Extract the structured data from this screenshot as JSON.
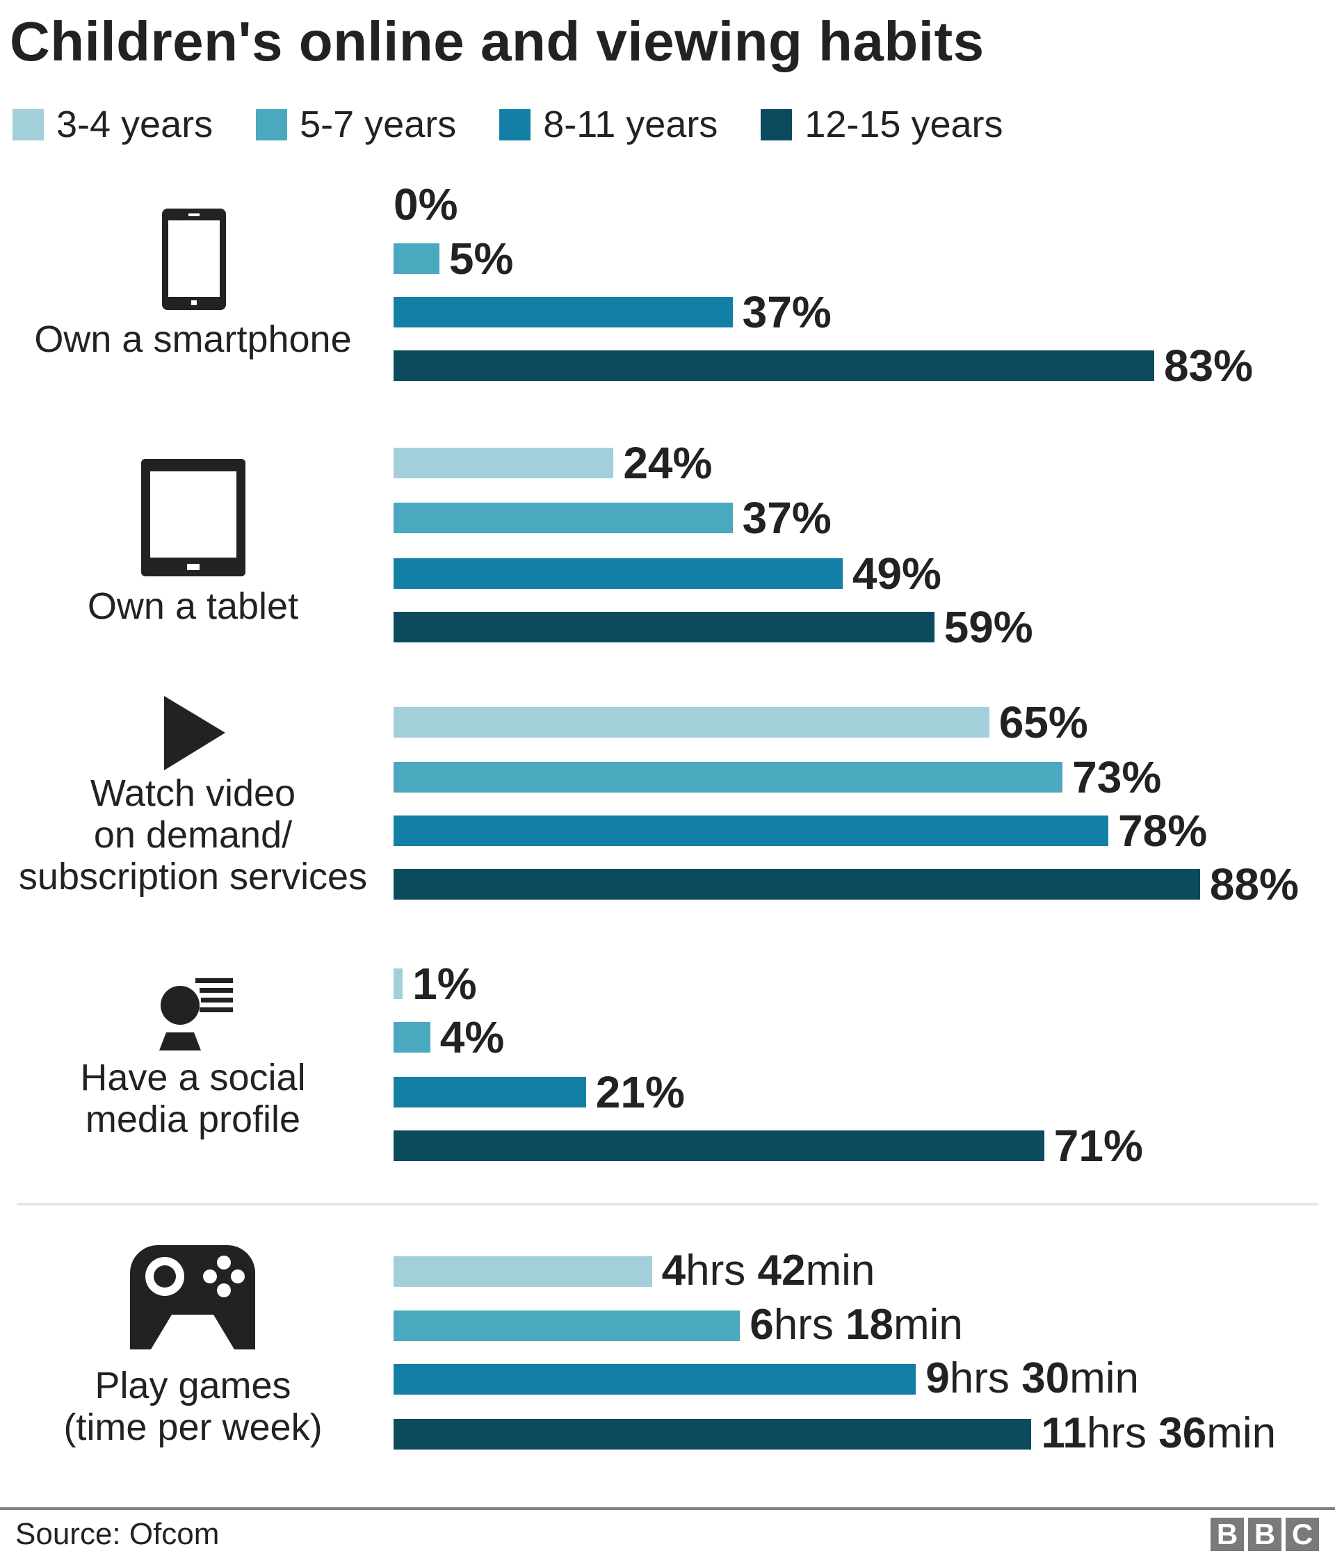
{
  "chart_data": {
    "type": "bar",
    "orientation": "horizontal",
    "title": "Children's online and viewing habits",
    "legend_position": "top",
    "grid": false,
    "series": [
      {
        "name": "3-4 years",
        "color": "#a3cfdb"
      },
      {
        "name": "5-7 years",
        "color": "#4aa8bf"
      },
      {
        "name": "8-11 years",
        "color": "#137fa4"
      },
      {
        "name": "12-15 years",
        "color": "#0c4a5e"
      }
    ],
    "groups": [
      {
        "label_lines": [
          "Own a smartphone"
        ],
        "icon": "smartphone-icon",
        "unit": "%",
        "values": [
          0,
          5,
          37,
          83
        ],
        "labels": [
          "0%",
          "5%",
          "37%",
          "83%"
        ]
      },
      {
        "label_lines": [
          "Own a tablet"
        ],
        "icon": "tablet-icon",
        "unit": "%",
        "values": [
          24,
          37,
          49,
          59
        ],
        "labels": [
          "24%",
          "37%",
          "49%",
          "59%"
        ]
      },
      {
        "label_lines": [
          "Watch video",
          "on demand/",
          "subscription services"
        ],
        "icon": "play-icon",
        "unit": "%",
        "values": [
          65,
          73,
          78,
          88
        ],
        "labels": [
          "65%",
          "73%",
          "78%",
          "88%"
        ]
      },
      {
        "label_lines": [
          "Have a social",
          "media profile"
        ],
        "icon": "social-profile-icon",
        "unit": "%",
        "values": [
          1,
          4,
          21,
          71
        ],
        "labels": [
          "1%",
          "4%",
          "21%",
          "71%"
        ]
      },
      {
        "label_lines": [
          "Play games",
          "(time per week)"
        ],
        "icon": "gamepad-icon",
        "unit": "minutes",
        "values": [
          282,
          378,
          570,
          696
        ],
        "labels": [
          {
            "h": "4",
            "hu": "hrs ",
            "m": "42",
            "mu": "min"
          },
          {
            "h": "6",
            "hu": "hrs ",
            "m": "18",
            "mu": "min"
          },
          {
            "h": "9",
            "hu": "hrs ",
            "m": "30",
            "mu": "min"
          },
          {
            "h": "11",
            "hu": "hrs ",
            "m": "36",
            "mu": "min"
          }
        ]
      }
    ]
  },
  "footer": {
    "source": "Source: Ofcom",
    "logo": [
      "B",
      "B",
      "C"
    ]
  }
}
